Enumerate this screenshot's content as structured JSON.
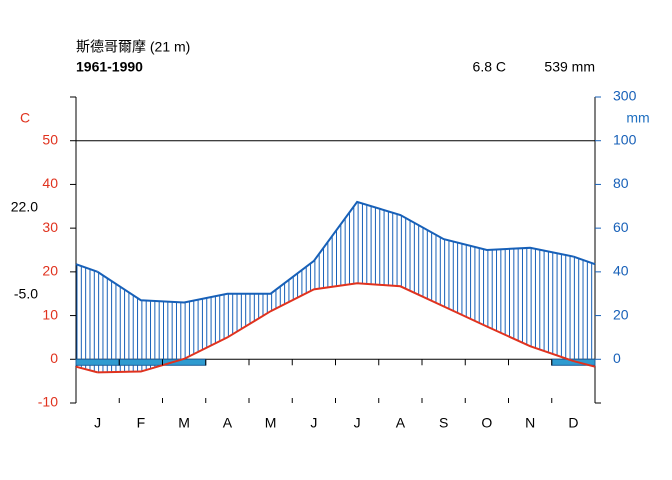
{
  "chart_data": {
    "type": "climate",
    "title": "斯德哥爾摩 (21 m)",
    "period": "1961-1990",
    "mean_temp": "6.8 C",
    "annual_precip": "539 mm",
    "ylabel": "C",
    "y2label": "mm",
    "categories": [
      "J",
      "F",
      "M",
      "A",
      "M",
      "J",
      "J",
      "A",
      "S",
      "O",
      "N",
      "D"
    ],
    "series": [
      {
        "name": "temperature",
        "color": "#e0321e",
        "values": [
          -3.0,
          -2.8,
          0.1,
          5.0,
          11.0,
          16.0,
          17.4,
          16.7,
          12.1,
          7.5,
          3.0,
          -0.4
        ]
      },
      {
        "name": "precipitation",
        "color": "#1760b8",
        "axis": "y2",
        "values": [
          40,
          27,
          26,
          30,
          30,
          45,
          72,
          66,
          55,
          50,
          51,
          47
        ]
      }
    ],
    "frost_months": [
      true,
      true,
      true,
      false,
      false,
      false,
      false,
      false,
      false,
      false,
      false,
      true
    ],
    "extremes": [
      {
        "value": 22.0,
        "label": "22.0"
      },
      {
        "value": -5.0,
        "label": "-5.0"
      }
    ],
    "ylim": [
      -10,
      60
    ],
    "yticks": [
      -10,
      0,
      10,
      20,
      30,
      40,
      50
    ],
    "y2lim": [
      -20,
      300
    ],
    "y2ticks": [
      0,
      20,
      40,
      60,
      80,
      100,
      300
    ],
    "y2_scale_break": 100
  }
}
